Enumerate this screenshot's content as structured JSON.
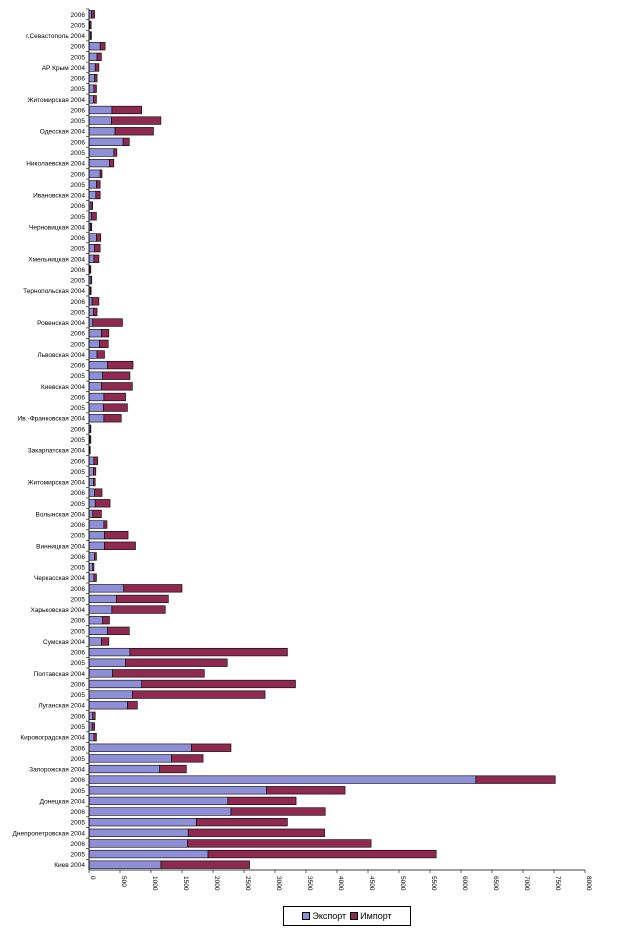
{
  "colors": {
    "export": "#8f8fd8",
    "import": "#8e2a4f",
    "axis": "#000000"
  },
  "chart_data": {
    "type": "bar",
    "orientation": "horizontal",
    "stacked": true,
    "xlim": [
      0,
      8000
    ],
    "xticks": [
      "0",
      "500",
      "1000",
      "1500",
      "2000",
      "2500",
      "3000",
      "3500",
      "4000",
      "4500",
      "5000",
      "5500",
      "6000",
      "6500",
      "7000",
      "7500",
      "8000"
    ],
    "grid": false,
    "legend_position": "bottom",
    "categories": [
      "2006",
      "2005",
      "г.Севастополь 2004",
      "2006",
      "2005",
      "АР Крым 2004",
      "2006",
      "2005",
      "Житомирская 2004",
      "2006",
      "2005",
      "Одесская 2004",
      "2006",
      "2005",
      "Николаевская 2004",
      "2006",
      "2005",
      "Ивановская 2004",
      "2006",
      "2005",
      "Черновицкая 2004",
      "2006",
      "2005",
      "Хмельницкая 2004",
      "2006",
      "2005",
      "Тернопольская 2004",
      "2006",
      "2005",
      "Ровенская 2004",
      "2006",
      "2005",
      "Львовская 2004",
      "2006",
      "2005",
      "Киевская 2004",
      "2006",
      "2005",
      "Ив.-Франковская 2004",
      "2006",
      "2005",
      "Закарпатская 2004",
      "2006",
      "2005",
      "Житомирская 2004",
      "2006",
      "2005",
      "Волынская 2004",
      "2006",
      "2005",
      "Винницкая 2004",
      "2006",
      "2005",
      "Черкасская 2004",
      "2006",
      "2005",
      "Харьковская 2004",
      "2006",
      "2005",
      "Сумская 2004",
      "2006",
      "2005",
      "Полтавская 2004",
      "2006",
      "2005",
      "Луганская 2004",
      "2006",
      "2005",
      "Кировоградская 2004",
      "2006",
      "2005",
      "Запорожская 2004",
      "2006",
      "2005",
      "Донецкая 2004",
      "2006",
      "2005",
      "Днепропетровская 2004",
      "2006",
      "2005",
      "Киев 2004"
    ],
    "series": [
      {
        "name": "Экспорт",
        "values": [
          40,
          15,
          25,
          180,
          130,
          100,
          90,
          80,
          70,
          370,
          360,
          420,
          550,
          400,
          330,
          180,
          120,
          110,
          30,
          40,
          25,
          120,
          90,
          80,
          15,
          30,
          20,
          50,
          70,
          60,
          200,
          170,
          130,
          300,
          220,
          200,
          240,
          230,
          240,
          20,
          15,
          10,
          80,
          70,
          70,
          90,
          100,
          60,
          240,
          250,
          250,
          90,
          60,
          80,
          560,
          440,
          370,
          220,
          300,
          200,
          660,
          590,
          380,
          850,
          700,
          620,
          60,
          50,
          80,
          1650,
          1330,
          1140,
          6240,
          2860,
          2240,
          2290,
          1730,
          1600,
          1590,
          1920,
          1160
        ]
      },
      {
        "name": "Импорт",
        "values": [
          50,
          20,
          15,
          80,
          70,
          60,
          40,
          40,
          50,
          480,
          800,
          620,
          100,
          50,
          70,
          30,
          60,
          70,
          30,
          80,
          20,
          70,
          90,
          80,
          15,
          15,
          15,
          110,
          60,
          480,
          120,
          140,
          120,
          410,
          440,
          500,
          350,
          390,
          280,
          10,
          15,
          10,
          60,
          40,
          30,
          120,
          240,
          140,
          50,
          380,
          500,
          30,
          20,
          40,
          940,
          840,
          860,
          110,
          350,
          120,
          2540,
          1640,
          1480,
          2480,
          2140,
          160,
          40,
          40,
          40,
          640,
          510,
          430,
          1280,
          1270,
          1100,
          1520,
          1470,
          2200,
          2960,
          3680,
          1430
        ]
      }
    ]
  }
}
